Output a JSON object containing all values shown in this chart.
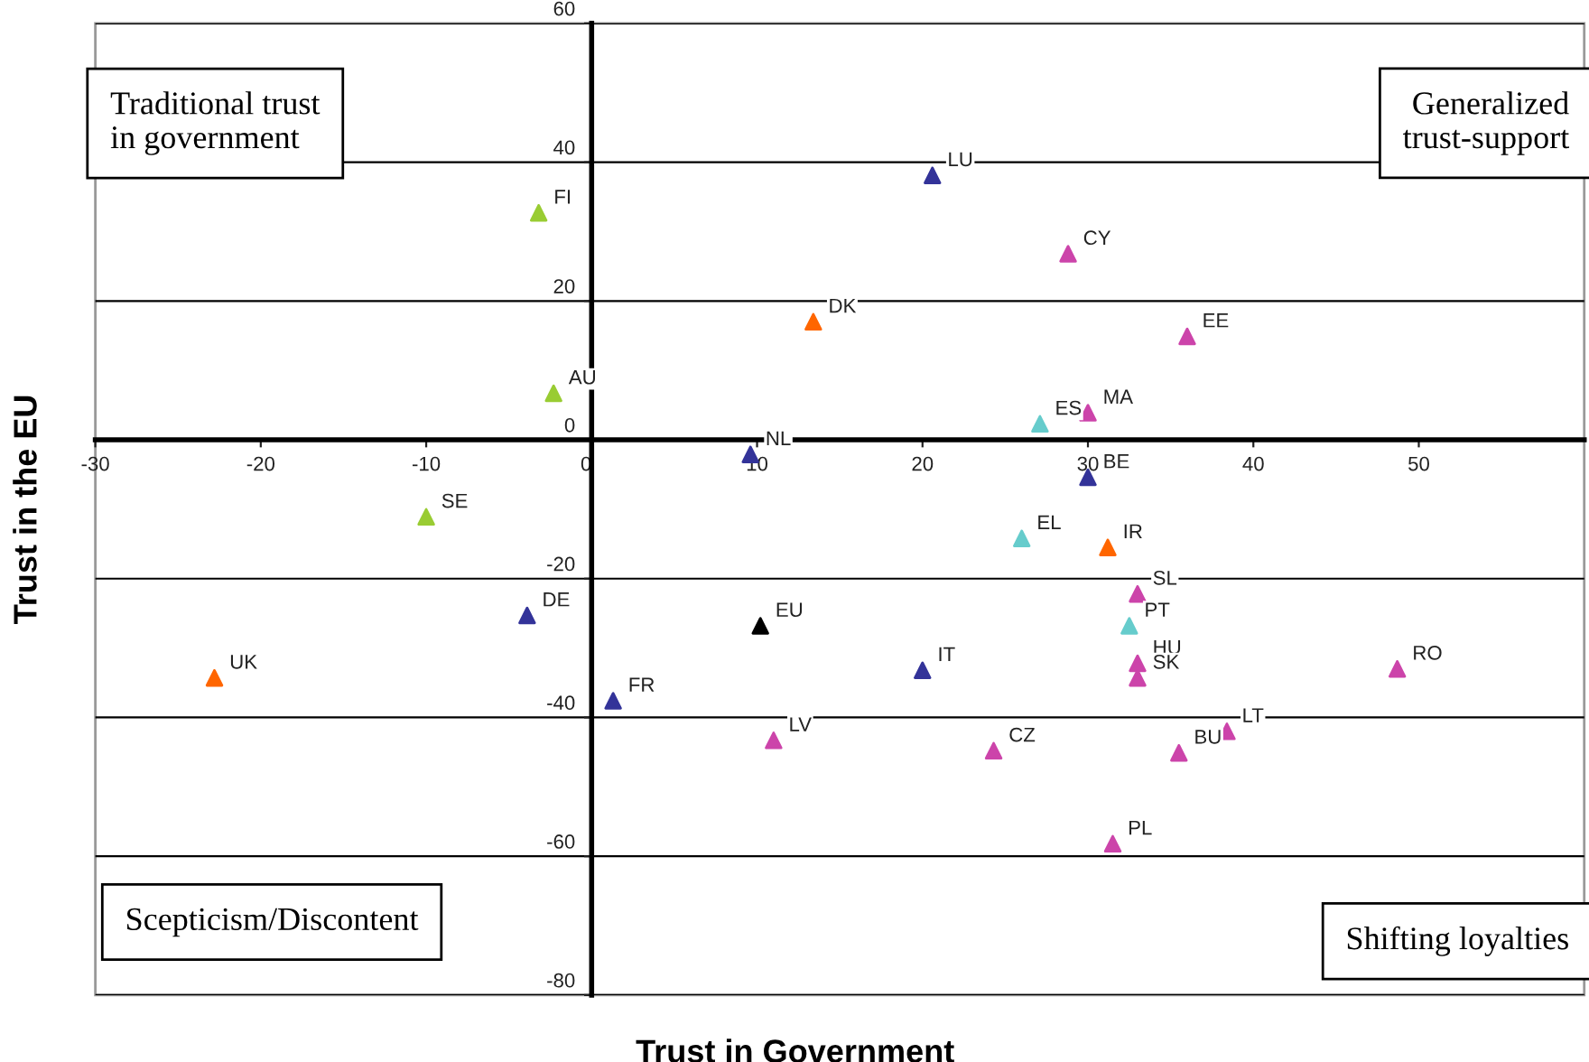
{
  "chart_data": {
    "type": "scatter",
    "xlabel": "Trust in Government",
    "ylabel": "Trust in the EU",
    "xlim": [
      -30,
      60
    ],
    "ylim": [
      -80,
      60
    ],
    "xticks": [
      -30,
      -20,
      -10,
      0,
      10,
      20,
      30,
      40,
      50
    ],
    "yticks": [
      -80,
      -60,
      -40,
      -20,
      0,
      20,
      40,
      60
    ],
    "grid": "y",
    "marker": "triangle",
    "series": [
      {
        "color": "#99cc33",
        "x": [
          -3.2,
          -2.3,
          -10.0
        ],
        "values": [
          32.7,
          6.7,
          -11.1
        ]
      },
      {
        "color": "#333399",
        "x": [
          20.6,
          9.6,
          30.0,
          -3.9,
          20.0,
          1.3
        ],
        "values": [
          38.1,
          -2.1,
          -5.4,
          -25.3,
          -33.2,
          -37.6
        ]
      },
      {
        "color": "#ff6600",
        "x": [
          13.4,
          31.2,
          -22.8
        ],
        "values": [
          17.0,
          -15.5,
          -34.3
        ]
      },
      {
        "color": "#cc44aa",
        "x": [
          28.8,
          36.0,
          30.0,
          33.0,
          33.0,
          33.0,
          48.7,
          38.4,
          11.0,
          24.3,
          35.5,
          31.5
        ],
        "values": [
          26.8,
          14.9,
          3.9,
          -22.2,
          -32.2,
          -34.3,
          -33.0,
          -42.0,
          -43.3,
          -44.8,
          -45.1,
          -58.2
        ]
      },
      {
        "color": "#66cccc",
        "x": [
          27.1,
          26.0,
          32.5
        ],
        "values": [
          2.3,
          -14.2,
          -26.8
        ]
      },
      {
        "color": "#000000",
        "x": [
          10.2
        ],
        "values": [
          -26.8
        ]
      }
    ],
    "annotations": [
      "Traditional trust\nin government",
      "Generalized\ntrust-support",
      "Scepticism/Discontent",
      "Shifting loyalties",
      {
        "text": "FI",
        "x": -3.2,
        "y": 32.7
      },
      {
        "text": "AU",
        "x": -2.3,
        "y": 6.7
      },
      {
        "text": "SE",
        "x": -10.0,
        "y": -11.1
      },
      {
        "text": "LU",
        "x": 20.6,
        "y": 38.1
      },
      {
        "text": "NL",
        "x": 9.6,
        "y": -2.1
      },
      {
        "text": "BE",
        "x": 30.0,
        "y": -5.4
      },
      {
        "text": "DE",
        "x": -3.9,
        "y": -25.3
      },
      {
        "text": "IT",
        "x": 20.0,
        "y": -33.2
      },
      {
        "text": "FR",
        "x": 1.3,
        "y": -37.6
      },
      {
        "text": "DK",
        "x": 13.4,
        "y": 17.0
      },
      {
        "text": "IR",
        "x": 31.2,
        "y": -15.5
      },
      {
        "text": "UK",
        "x": -22.8,
        "y": -34.3
      },
      {
        "text": "CY",
        "x": 28.8,
        "y": 26.8
      },
      {
        "text": "EE",
        "x": 36.0,
        "y": 14.9
      },
      {
        "text": "MA",
        "x": 30.0,
        "y": 3.9
      },
      {
        "text": "SL",
        "x": 33.0,
        "y": -22.2
      },
      {
        "text": "HU",
        "x": 33.0,
        "y": -32.2
      },
      {
        "text": "SK",
        "x": 33.0,
        "y": -34.3
      },
      {
        "text": "RO",
        "x": 48.7,
        "y": -33.0
      },
      {
        "text": "LT",
        "x": 38.4,
        "y": -42.0
      },
      {
        "text": "LV",
        "x": 11.0,
        "y": -43.3
      },
      {
        "text": "CZ",
        "x": 24.3,
        "y": -44.8
      },
      {
        "text": "BU",
        "x": 35.5,
        "y": -45.1
      },
      {
        "text": "PL",
        "x": 31.5,
        "y": -58.2
      },
      {
        "text": "ES",
        "x": 27.1,
        "y": 2.3
      },
      {
        "text": "EL",
        "x": 26.0,
        "y": -14.2
      },
      {
        "text": "PT",
        "x": 32.5,
        "y": -26.8
      },
      {
        "text": "EU",
        "x": 10.2,
        "y": -26.8
      }
    ]
  }
}
